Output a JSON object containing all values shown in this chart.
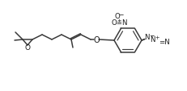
{
  "bg_color": "#ffffff",
  "line_color": "#3a3a3a",
  "figsize": [
    2.32,
    1.14
  ],
  "dpi": 100,
  "xlim": [
    0,
    232
  ],
  "ylim": [
    0,
    114
  ]
}
